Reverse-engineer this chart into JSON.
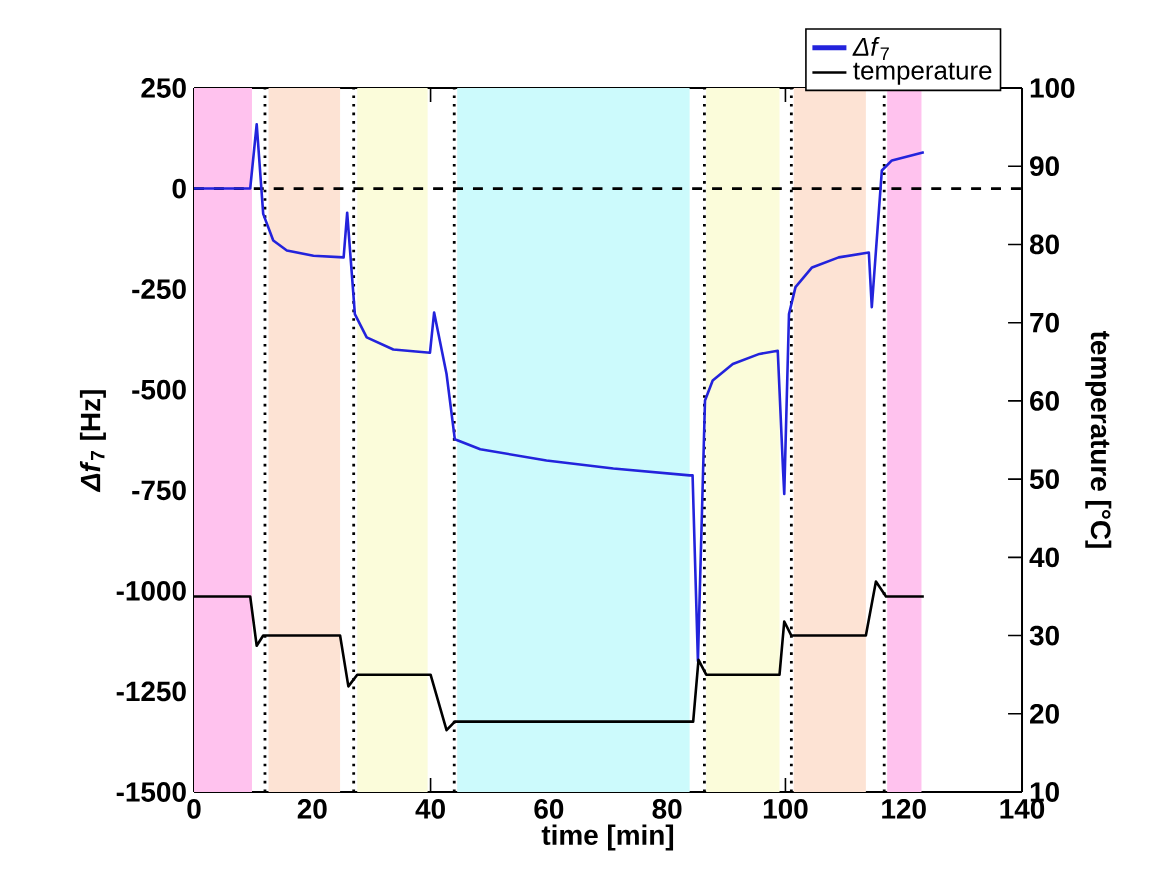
{
  "chart_data": {
    "type": "line",
    "xlabel": "time [min]",
    "ylabel": "*Δf*$_{7}$ [Hz]",
    "y2label": "temperature [°C]",
    "xlim": [
      0,
      140
    ],
    "xticks": [
      0,
      20,
      40,
      60,
      80,
      100,
      120,
      140
    ],
    "ylim": [
      -1500,
      250
    ],
    "yticks": [
      -1500,
      -1250,
      -1000,
      -750,
      -500,
      -250,
      0,
      250
    ],
    "y2lim": [
      10,
      100
    ],
    "y2ticks": [
      10,
      20,
      30,
      40,
      50,
      60,
      70,
      80,
      90,
      100
    ],
    "legend": "top right",
    "series": [
      {
        "name": "*Δf*$_{7}$",
        "color": "#2323dc",
        "x": [
          0,
          9.5,
          10.6,
          11.7,
          13.4,
          15.7,
          20.2,
          25.3,
          25.9,
          27.2,
          29.2,
          33.7,
          39.9,
          40.6,
          42.7,
          44.1,
          48.4,
          59.6,
          70.9,
          83.8,
          84.3,
          85.2,
          86.4,
          87.7,
          91.1,
          95.6,
          98.7,
          99.6,
          99.8,
          100.6,
          101.7,
          104.5,
          109,
          114.1,
          114.6,
          116.3,
          118,
          123.4
        ],
        "values": [
          0,
          0,
          160,
          -63,
          -129,
          -154,
          -167,
          -171,
          -60,
          -312,
          -370,
          -400,
          -408,
          -308,
          -461,
          -623,
          -648,
          -676,
          -696,
          -713,
          -713,
          -1174,
          -527,
          -477,
          -436,
          -411,
          -403,
          -701,
          -759,
          -312,
          -245,
          -196,
          -171,
          -159,
          -295,
          45,
          70,
          90
        ]
      },
      {
        "name": "temperature",
        "color": "#000000",
        "axis": "y2",
        "x": [
          0,
          9.5,
          10.6,
          11.7,
          12.3,
          24.7,
          26.1,
          27.6,
          40,
          42.7,
          44.1,
          84.4,
          85.3,
          86.6,
          99,
          99.8,
          101,
          113.6,
          115.3,
          117,
          123.4
        ],
        "values": [
          35,
          35,
          28.7,
          30,
          30,
          30,
          23.5,
          25,
          25,
          17.9,
          19,
          19,
          26.9,
          25,
          25,
          31.8,
          30,
          30,
          36.9,
          35,
          35
        ]
      }
    ],
    "ref_lines": [
      {
        "axis": "y",
        "value": 0,
        "line_style": "dashed",
        "color": "#000000"
      },
      {
        "axis": "x",
        "value": 12,
        "line_style": "dotted",
        "color": "#000000"
      },
      {
        "axis": "x",
        "value": 27,
        "line_style": "dotted",
        "color": "#000000"
      },
      {
        "axis": "x",
        "value": 44,
        "line_style": "dotted",
        "color": "#000000"
      },
      {
        "axis": "x",
        "value": 86.3,
        "line_style": "dotted",
        "color": "#000000"
      },
      {
        "axis": "x",
        "value": 101,
        "line_style": "dotted",
        "color": "#000000"
      },
      {
        "axis": "x",
        "value": 116.7,
        "line_style": "dotted",
        "color": "#000000"
      }
    ],
    "bands": [
      {
        "axis": "x",
        "from": 0,
        "to": 9.8,
        "color": "#ffc2ee"
      },
      {
        "axis": "x",
        "from": 12.6,
        "to": 24.7,
        "color": "#fde3d4"
      },
      {
        "axis": "x",
        "from": 27.6,
        "to": 39.5,
        "color": "#fbfcda"
      },
      {
        "axis": "x",
        "from": 44.5,
        "to": 83.8,
        "color": "#ccfafc"
      },
      {
        "axis": "x",
        "from": 86.6,
        "to": 99,
        "color": "#fbfcda"
      },
      {
        "axis": "x",
        "from": 101.4,
        "to": 113.6,
        "color": "#fde3d4"
      },
      {
        "axis": "x",
        "from": 117.2,
        "to": 123,
        "color": "#ffc2ee"
      }
    ]
  }
}
